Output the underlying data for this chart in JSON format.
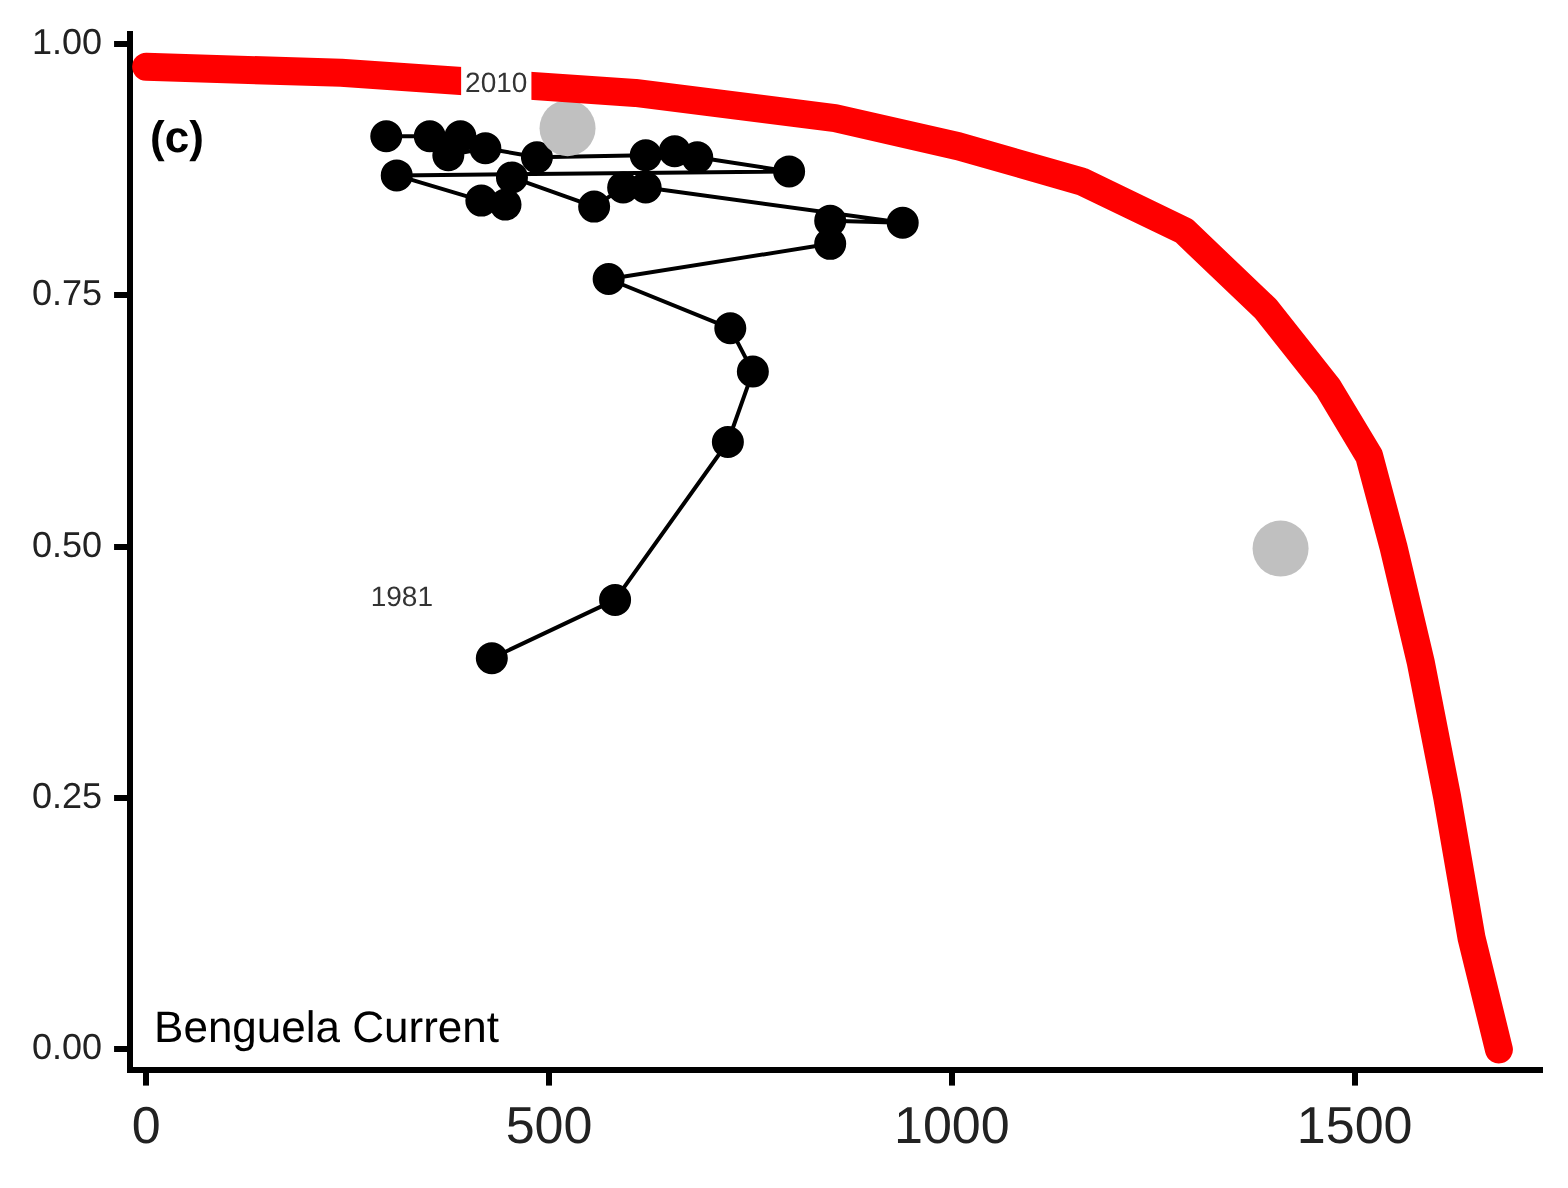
{
  "chart_data": {
    "type": "line",
    "xlim": [
      -20,
      1730
    ],
    "ylim": [
      -0.02,
      1.01
    ],
    "xticks": [
      0,
      500,
      1000,
      1500
    ],
    "yticks": [
      {
        "value": 0,
        "label": "0.00"
      },
      {
        "value": 0.25,
        "label": "0.25"
      },
      {
        "value": 0.5,
        "label": "0.50"
      },
      {
        "value": 0.75,
        "label": "0.75"
      },
      {
        "value": 1,
        "label": "1.00"
      }
    ],
    "grid": false,
    "legend": false,
    "line_style": "solid",
    "series": [
      {
        "color": "#ff0000",
        "marker": "none",
        "x": [
          0,
          242,
          607,
          855,
          1008,
          1161,
          1288,
          1390,
          1467,
          1518,
          1548,
          1582,
          1615,
          1645,
          1679
        ],
        "values": [
          0.977,
          0.971,
          0.951,
          0.926,
          0.898,
          0.863,
          0.814,
          0.736,
          0.658,
          0.59,
          0.5,
          0.385,
          0.25,
          0.111,
          0
        ]
      },
      {
        "type": "scatter",
        "color": "#c0c0c0",
        "marker": "circle",
        "x": [
          1408,
          523
        ],
        "values": [
          0.498,
          0.916
        ]
      },
      {
        "color": "#000000",
        "marker": "circle",
        "x": [
          429,
          582,
          722,
          753,
          725,
          574,
          849,
          849,
          939,
          620,
          592,
          556,
          454,
          446,
          416,
          311,
          798,
          684,
          656,
          620,
          485,
          421,
          375,
          390,
          352,
          298
        ],
        "values": [
          0.389,
          0.447,
          0.604,
          0.674,
          0.717,
          0.766,
          0.801,
          0.824,
          0.822,
          0.857,
          0.857,
          0.838,
          0.867,
          0.84,
          0.844,
          0.869,
          0.873,
          0.887,
          0.893,
          0.889,
          0.887,
          0.896,
          0.889,
          0.908,
          0.908,
          0.908
        ]
      }
    ],
    "annotations": [
      "(c)",
      "Benguela Current",
      "1981",
      "2010"
    ]
  }
}
